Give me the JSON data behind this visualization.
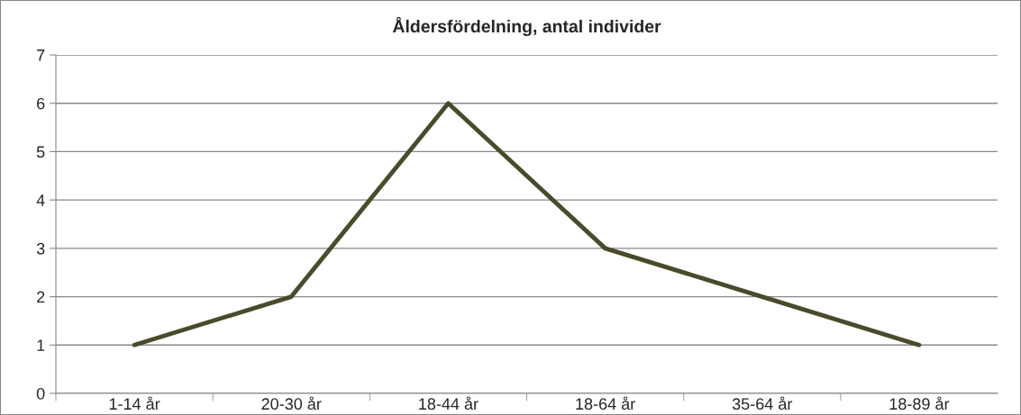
{
  "chart_data": {
    "type": "line",
    "title": "Åldersfördelning, antal individer",
    "categories": [
      "1-14 år",
      "20-30 år",
      "18-44 år",
      "18-64 år",
      "35-64 år",
      "18-89 år"
    ],
    "series": [
      {
        "color": "#4a4a2c",
        "values": [
          1,
          2,
          6,
          3,
          2,
          1
        ]
      }
    ],
    "ylim": [
      0,
      7
    ],
    "yticks": [
      0,
      1,
      2,
      3,
      4,
      5,
      6,
      7
    ],
    "grid": "y",
    "marker": "none",
    "line_style": "solid"
  }
}
